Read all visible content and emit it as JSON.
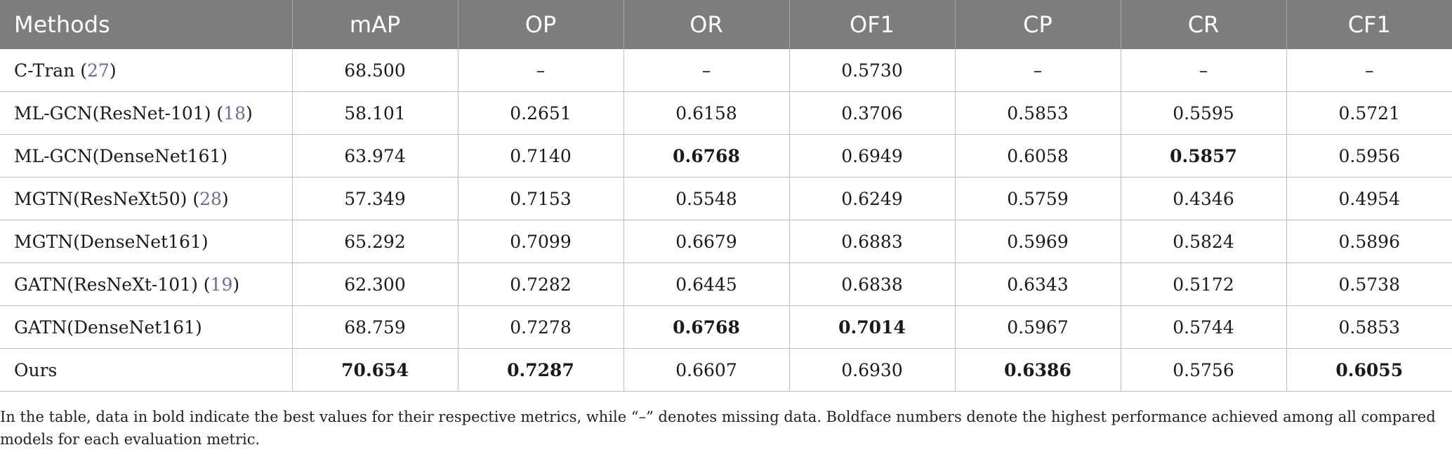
{
  "table": {
    "columns": [
      "Methods",
      "mAP",
      "OP",
      "OR",
      "OF1",
      "CP",
      "CR",
      "CF1"
    ],
    "rows": [
      {
        "method": "C-Tran",
        "ref": "27",
        "values": [
          "68.500",
          "–",
          "–",
          "0.5730",
          "–",
          "–",
          "–"
        ],
        "bold": []
      },
      {
        "method": "ML-GCN(ResNet-101)",
        "ref": "18",
        "values": [
          "58.101",
          "0.2651",
          "0.6158",
          "0.3706",
          "0.5853",
          "0.5595",
          "0.5721"
        ],
        "bold": []
      },
      {
        "method": "ML-GCN(DenseNet161)",
        "ref": "",
        "values": [
          "63.974",
          "0.7140",
          "0.6768",
          "0.6949",
          "0.6058",
          "0.5857",
          "0.5956"
        ],
        "bold": [
          2,
          5
        ]
      },
      {
        "method": "MGTN(ResNeXt50)",
        "ref": "28",
        "values": [
          "57.349",
          "0.7153",
          "0.5548",
          "0.6249",
          "0.5759",
          "0.4346",
          "0.4954"
        ],
        "bold": []
      },
      {
        "method": "MGTN(DenseNet161)",
        "ref": "",
        "values": [
          "65.292",
          "0.7099",
          "0.6679",
          "0.6883",
          "0.5969",
          "0.5824",
          "0.5896"
        ],
        "bold": []
      },
      {
        "method": "GATN(ResNeXt-101)",
        "ref": "19",
        "values": [
          "62.300",
          "0.7282",
          "0.6445",
          "0.6838",
          "0.6343",
          "0.5172",
          "0.5738"
        ],
        "bold": []
      },
      {
        "method": "GATN(DenseNet161)",
        "ref": "",
        "values": [
          "68.759",
          "0.7278",
          "0.6768",
          "0.7014",
          "0.5967",
          "0.5744",
          "0.5853"
        ],
        "bold": [
          2,
          3
        ]
      },
      {
        "method": "Ours",
        "ref": "",
        "values": [
          "70.654",
          "0.7287",
          "0.6607",
          "0.6930",
          "0.6386",
          "0.5756",
          "0.6055"
        ],
        "bold": [
          0,
          1,
          4,
          6
        ]
      }
    ]
  },
  "footnote": "In the table, data in bold indicate the best values for their respective metrics, while “–” denotes missing data. Boldface numbers denote the highest performance achieved among all compared models for each evaluation metric."
}
